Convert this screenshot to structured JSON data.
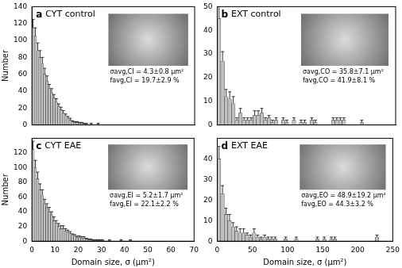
{
  "chart_data": [
    {
      "type": "bar",
      "label": "a",
      "title": "CYT control",
      "ylabel": "Number",
      "annotations": [
        "σavg,CI = 4.3±0.8 μm²",
        "favg,CI = 19.7±2.9 %"
      ],
      "bins": [
        0,
        1,
        2,
        3,
        4,
        5,
        6,
        7,
        8,
        9,
        10,
        11,
        12,
        13,
        14,
        15,
        16,
        17,
        18,
        19,
        20,
        21,
        22,
        23,
        24,
        25,
        26,
        27,
        28,
        29,
        30
      ],
      "values": [
        115,
        105,
        88,
        80,
        72,
        60,
        52,
        43,
        38,
        32,
        27,
        22,
        18,
        14,
        11,
        8,
        6,
        4,
        3,
        3,
        2,
        2,
        1,
        1,
        0,
        1,
        0,
        0,
        1,
        0
      ],
      "errors": [
        10,
        10,
        9,
        8,
        8,
        7,
        6,
        5,
        5,
        4,
        4,
        3,
        3,
        3,
        2,
        2,
        2,
        1,
        1,
        1,
        1,
        1,
        1,
        1,
        0,
        1,
        0,
        0,
        1,
        0
      ],
      "color": "#c0c0c0",
      "xlim": [
        0,
        70
      ],
      "xticks": [
        0,
        10,
        20,
        30,
        40,
        50,
        60,
        70
      ],
      "ylim": [
        0,
        140
      ],
      "yticks": [
        0,
        20,
        40,
        60,
        80,
        100,
        120,
        140
      ],
      "grid": false,
      "tick_labels": "y"
    },
    {
      "type": "bar",
      "label": "b",
      "title": "EXT control",
      "annotations": [
        "σavg,CO = 35.8±7.1 μm²",
        "favg,CO = 41.9±8.1 %"
      ],
      "bins": [
        0,
        5,
        10,
        15,
        20,
        25,
        30,
        35,
        40,
        45,
        50,
        55,
        60,
        65,
        70,
        75,
        80,
        85,
        90,
        95,
        100,
        105,
        110,
        115,
        120,
        125,
        130,
        135,
        140,
        145,
        150,
        155,
        160,
        165,
        170,
        175,
        180,
        185,
        190,
        195,
        200,
        205,
        210
      ],
      "values": [
        45,
        27,
        12,
        11,
        9,
        2,
        5,
        2,
        2,
        2,
        4,
        4,
        5,
        2,
        3,
        1,
        2,
        0,
        2,
        1,
        0,
        2,
        0,
        1,
        1,
        0,
        2,
        1,
        0,
        0,
        0,
        0,
        2,
        2,
        2,
        2,
        0,
        0,
        0,
        0,
        1,
        0
      ],
      "errors": [
        5,
        4,
        3,
        3,
        3,
        1,
        2,
        1,
        1,
        1,
        2,
        2,
        2,
        1,
        1,
        1,
        1,
        0,
        1,
        1,
        0,
        1,
        0,
        1,
        1,
        0,
        1,
        1,
        0,
        0,
        0,
        0,
        1,
        1,
        1,
        1,
        0,
        0,
        0,
        0,
        1,
        0
      ],
      "color": "#c0c0c0",
      "xlim": [
        0,
        250
      ],
      "xticks": [
        0,
        50,
        100,
        150,
        200,
        250
      ],
      "ylim": [
        0,
        50
      ],
      "yticks": [
        0,
        10,
        20,
        30,
        40,
        50
      ],
      "grid": false,
      "tick_labels": "y"
    },
    {
      "type": "bar",
      "label": "c",
      "title": "CYT EAE",
      "ylabel": "Number",
      "xlabel": "Domain size, σ (μm²)",
      "annotations": [
        "σavg,EI = 5.2±1.7 μm²",
        "favg,EI = 22.1±2.2 %"
      ],
      "bins": [
        0,
        1,
        2,
        3,
        4,
        5,
        6,
        7,
        8,
        9,
        10,
        11,
        12,
        13,
        14,
        15,
        16,
        17,
        18,
        19,
        20,
        21,
        22,
        23,
        24,
        25,
        26,
        27,
        28,
        29,
        30,
        31,
        32,
        33,
        34,
        35,
        36,
        37,
        38,
        39,
        40,
        41,
        42,
        43,
        44,
        45
      ],
      "values": [
        125,
        100,
        85,
        70,
        62,
        50,
        45,
        40,
        35,
        28,
        24,
        20,
        17,
        17,
        14,
        12,
        10,
        8,
        7,
        5,
        5,
        4,
        4,
        3,
        2,
        2,
        1,
        1,
        1,
        1,
        1,
        0,
        0,
        1,
        0,
        0,
        0,
        0,
        1,
        0,
        0,
        0,
        1,
        0,
        0
      ],
      "errors": [
        11,
        10,
        9,
        8,
        8,
        7,
        6,
        6,
        5,
        5,
        4,
        4,
        4,
        4,
        3,
        3,
        3,
        2,
        2,
        2,
        2,
        2,
        2,
        1,
        1,
        1,
        1,
        1,
        1,
        1,
        1,
        0,
        0,
        1,
        0,
        0,
        0,
        0,
        1,
        0,
        0,
        0,
        1,
        0,
        0
      ],
      "color": "#c0c0c0",
      "xlim": [
        0,
        70
      ],
      "xticks": [
        0,
        10,
        20,
        30,
        40,
        50,
        60,
        70
      ],
      "ylim": [
        0,
        140
      ],
      "yticks": [
        0,
        20,
        40,
        60,
        80,
        100,
        120
      ],
      "grid": false
    },
    {
      "type": "bar",
      "label": "d",
      "title": "EXT EAE",
      "xlabel": "Domain size, σ (μm²)",
      "annotations": [
        "σavg,EO = 48.9±19.2 μm²",
        "favg,EO = 44.3±3.2 %"
      ],
      "bins": [
        0,
        5,
        10,
        15,
        20,
        25,
        30,
        35,
        40,
        45,
        50,
        55,
        60,
        65,
        70,
        75,
        80,
        85,
        90,
        95,
        100,
        105,
        110,
        115,
        120,
        125,
        130,
        135,
        140,
        145,
        150,
        155,
        160,
        165,
        170,
        175,
        180,
        185,
        190,
        195,
        200,
        205,
        210,
        215,
        220,
        225,
        230
      ],
      "values": [
        40,
        23,
        13,
        10,
        7,
        5,
        4,
        4,
        3,
        2,
        4,
        2,
        1,
        2,
        1,
        1,
        1,
        0,
        0,
        1,
        0,
        0,
        1,
        0,
        0,
        0,
        0,
        0,
        1,
        0,
        1,
        0,
        1,
        1,
        0,
        0,
        0,
        0,
        0,
        0,
        0,
        0,
        0,
        0,
        0,
        2
      ],
      "errors": [
        6,
        4,
        3,
        3,
        2,
        2,
        2,
        2,
        1,
        1,
        2,
        1,
        1,
        1,
        1,
        1,
        1,
        0,
        0,
        1,
        0,
        0,
        1,
        0,
        0,
        0,
        0,
        0,
        1,
        0,
        1,
        0,
        1,
        1,
        0,
        0,
        0,
        0,
        0,
        0,
        0,
        0,
        0,
        0,
        0,
        1
      ],
      "color": "#c0c0c0",
      "xlim": [
        0,
        250
      ],
      "xticks": [
        0,
        50,
        100,
        150,
        200,
        250
      ],
      "ylim": [
        0,
        50
      ],
      "yticks": [
        0,
        10,
        20,
        30,
        40
      ],
      "grid": false
    }
  ]
}
